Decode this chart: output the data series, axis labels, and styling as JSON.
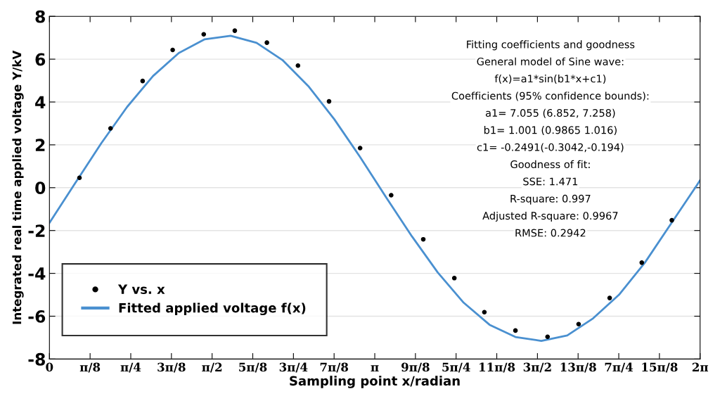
{
  "chart_data": {
    "type": "scatter",
    "xlabel": "Sampling point x/radian",
    "ylabel": "Integrated real time applied voltage Y/kV",
    "xlim": [
      0,
      6.2832
    ],
    "ylim": [
      -8,
      8
    ],
    "xticks": [
      {
        "value": 0,
        "label": "0"
      },
      {
        "value": 0.3927,
        "label": "π/8"
      },
      {
        "value": 0.7854,
        "label": "π/4"
      },
      {
        "value": 1.1781,
        "label": "3π/8"
      },
      {
        "value": 1.5708,
        "label": "π/2"
      },
      {
        "value": 1.9635,
        "label": "5π/8"
      },
      {
        "value": 2.3562,
        "label": "3π/4"
      },
      {
        "value": 2.7489,
        "label": "7π/8"
      },
      {
        "value": 3.1416,
        "label": "π"
      },
      {
        "value": 3.5343,
        "label": "9π/8"
      },
      {
        "value": 3.927,
        "label": "5π/4"
      },
      {
        "value": 4.3197,
        "label": "11π/8"
      },
      {
        "value": 4.7124,
        "label": "3π/2"
      },
      {
        "value": 5.1051,
        "label": "13π/8"
      },
      {
        "value": 5.4978,
        "label": "7π/4"
      },
      {
        "value": 5.8905,
        "label": "15π/8"
      },
      {
        "value": 6.2832,
        "label": "2π"
      }
    ],
    "yticks": [
      -8,
      -6,
      -4,
      -2,
      0,
      2,
      4,
      6,
      8
    ],
    "grid": "y",
    "legend": "bottom left",
    "series": [
      {
        "name": "Y vs. x",
        "marker": "circle",
        "color": "#000000",
        "x": [
          0.29,
          0.59,
          0.9,
          1.19,
          1.49,
          1.79,
          2.1,
          2.4,
          2.7,
          3.0,
          3.3,
          3.61,
          3.91,
          4.2,
          4.5,
          4.81,
          5.11,
          5.41,
          5.72,
          6.01
        ],
        "values": [
          0.46,
          2.77,
          4.98,
          6.43,
          7.16,
          7.33,
          6.77,
          5.7,
          4.03,
          1.85,
          -0.35,
          -2.41,
          -4.22,
          -5.81,
          -6.67,
          -6.96,
          -6.37,
          -5.15,
          -3.5,
          -1.52
        ]
      },
      {
        "name": "Fitted applied voltage f(x)",
        "type": "line",
        "marker": "none",
        "color": "#4a90d0",
        "x": [
          0,
          0.25,
          0.5,
          0.75,
          1.0,
          1.25,
          1.5,
          1.75,
          2.0,
          2.25,
          2.5,
          2.75,
          3.0,
          3.25,
          3.5,
          3.75,
          4.0,
          4.25,
          4.5,
          4.75,
          5.0,
          5.25,
          5.5,
          5.75,
          6.0,
          6.25,
          6.2832
        ],
        "values": [
          -1.64,
          0.22,
          2.07,
          3.77,
          5.21,
          6.29,
          6.93,
          7.09,
          6.76,
          5.96,
          4.74,
          3.2,
          1.43,
          -0.44,
          -2.27,
          -3.96,
          -5.37,
          -6.4,
          -6.97,
          -7.15,
          -6.9,
          -6.1,
          -5.0,
          -3.5,
          -1.7,
          0.1,
          0.35
        ]
      }
    ],
    "annotations": [
      "Fitting coefficients and goodness",
      "General model of Sine wave:",
      "f(x)=a1*sin(b1*x+c1)",
      "Coefficients (95% confidence bounds):",
      "a1= 7.055 (6.852, 7.258)",
      "b1= 1.001 (0.9865 1.016)",
      "c1= -0.2491(-0.3042,-0.194)",
      "Goodness of fit:",
      "SSE: 1.471",
      "R-square: 0.997",
      "Adjusted R-square: 0.9967",
      "RMSE: 0.2942"
    ]
  }
}
